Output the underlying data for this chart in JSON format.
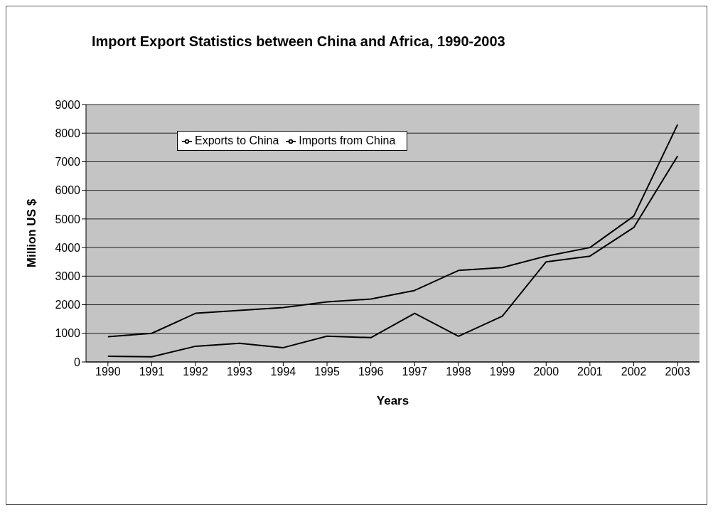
{
  "chart_data": {
    "type": "line",
    "title": "Import Export Statistics between China and Africa, 1990-2003",
    "xlabel": "Years",
    "ylabel": "Million US $",
    "categories": [
      "1990",
      "1991",
      "1992",
      "1993",
      "1994",
      "1995",
      "1996",
      "1997",
      "1998",
      "1999",
      "2000",
      "2001",
      "2002",
      "2003"
    ],
    "series": [
      {
        "name": "Imports from China",
        "color": "#000000",
        "values": [
          880,
          1000,
          1700,
          1800,
          1900,
          2100,
          2200,
          2500,
          3200,
          3300,
          3700,
          4000,
          5100,
          8300
        ]
      },
      {
        "name": "Exports to China",
        "color": "#000000",
        "values": [
          200,
          180,
          550,
          650,
          500,
          900,
          850,
          1700,
          900,
          1600,
          3500,
          3700,
          4700,
          7200
        ]
      }
    ],
    "ylim": [
      0,
      9000
    ],
    "yticks": [
      0,
      1000,
      2000,
      3000,
      4000,
      5000,
      6000,
      7000,
      8000,
      9000
    ],
    "grid": "y",
    "legend": "top left",
    "marker": "none",
    "line_style": "solid"
  }
}
